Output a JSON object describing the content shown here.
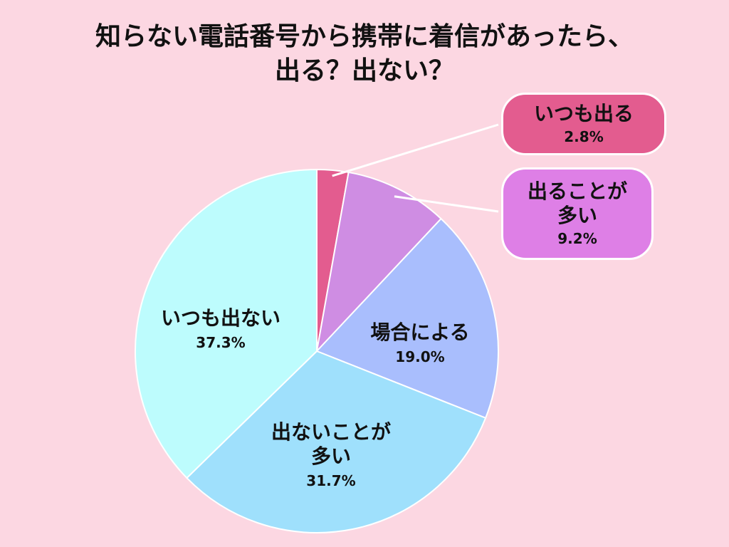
{
  "chart_data": {
    "type": "pie",
    "title_lines": [
      "知らない電話番号から携帯に着信があったら、",
      "出る？出ない？"
    ],
    "slices": [
      {
        "label_lines": [
          "いつも出る"
        ],
        "value": 2.8,
        "display": "2.8%",
        "color": "#e35c8f"
      },
      {
        "label_lines": [
          "出ることが",
          "多い"
        ],
        "value": 9.2,
        "display": "9.2%",
        "color": "#cf8de3"
      },
      {
        "label_lines": [
          "場合による"
        ],
        "value": 19.0,
        "display": "19.0%",
        "color": "#a9befd"
      },
      {
        "label_lines": [
          "出ないことが",
          "多い"
        ],
        "value": 31.7,
        "display": "31.7%",
        "color": "#9fe0fc"
      },
      {
        "label_lines": [
          "いつも出ない"
        ],
        "value": 37.3,
        "display": "37.3%",
        "color": "#bdfcfd"
      }
    ],
    "start": "12 o'clock",
    "direction": "clockwise",
    "legend": "none"
  },
  "colors": {
    "background": "#fcd7e2",
    "slice_border": "#ffffff",
    "leader_line": "#ffffff"
  }
}
